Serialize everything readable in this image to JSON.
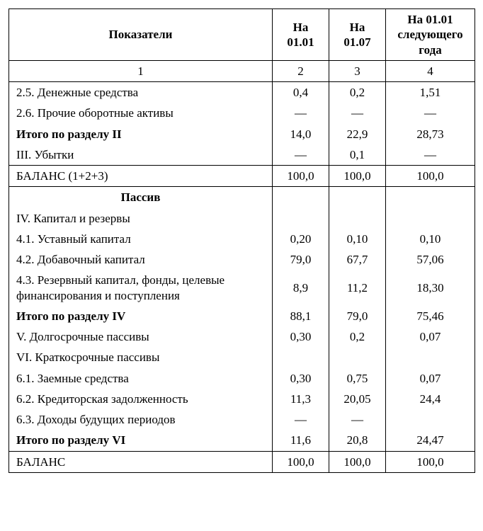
{
  "table": {
    "columns": [
      "col-ind",
      "col-c1",
      "col-c2",
      "col-c3"
    ],
    "header": {
      "indicators": "Показатели",
      "c1": "На 01.01",
      "c2": "На 01.07",
      "c3": "На 01.01 следующего года"
    },
    "numrow": {
      "n1": "1",
      "n2": "2",
      "n3": "3",
      "n4": "4"
    },
    "rows": [
      {
        "label": "2.5. Денежные средства",
        "c1": "0,4",
        "c2": "0,2",
        "c3": "1,51",
        "style": "plain",
        "border": "no-bottom"
      },
      {
        "label": "2.6. Прочие оборотные активы",
        "c1": "—",
        "c2": "—",
        "c3": "—",
        "style": "plain",
        "border": "no-top no-bottom"
      },
      {
        "label": "Итого по разделу II",
        "c1": "14,0",
        "c2": "22,9",
        "c3": "28,73",
        "style": "bold",
        "border": "no-top no-bottom"
      },
      {
        "label": "III. Убытки",
        "c1": "—",
        "c2": "0,1",
        "c3": "—",
        "style": "plain",
        "border": "no-top"
      },
      {
        "label": "БАЛАНС (1+2+3)",
        "c1": "100,0",
        "c2": "100,0",
        "c3": "100,0",
        "style": "plain",
        "border": ""
      },
      {
        "label": "Пассив",
        "c1": "",
        "c2": "",
        "c3": "",
        "style": "section",
        "border": "no-bottom"
      },
      {
        "label": "IV. Капитал и резервы",
        "c1": "",
        "c2": "",
        "c3": "",
        "style": "plain",
        "border": "no-top no-bottom"
      },
      {
        "label": "4.1. Уставный капитал",
        "c1": "0,20",
        "c2": "0,10",
        "c3": "0,10",
        "style": "plain",
        "border": "no-top no-bottom"
      },
      {
        "label": "4.2. Добавочный капитал",
        "c1": "79,0",
        "c2": "67,7",
        "c3": "57,06",
        "style": "plain",
        "border": "no-top no-bottom"
      },
      {
        "label": "4.3. Резервный капитал, фонды, целевые финансирования и поступления",
        "c1": "8,9",
        "c2": "11,2",
        "c3": "18,30",
        "style": "plain",
        "border": "no-top no-bottom"
      },
      {
        "label": "Итого по разделу IV",
        "c1": "88,1",
        "c2": "79,0",
        "c3": "75,46",
        "style": "bold",
        "border": "no-top no-bottom"
      },
      {
        "label": "V. Долгосрочные пассивы",
        "c1": "0,30",
        "c2": "0,2",
        "c3": "0,07",
        "style": "plain",
        "border": "no-top no-bottom"
      },
      {
        "label": "VI. Краткосрочные пассивы",
        "c1": "",
        "c2": "",
        "c3": "",
        "style": "plain",
        "border": "no-top no-bottom"
      },
      {
        "label": "6.1. Заемные средства",
        "c1": "0,30",
        "c2": "0,75",
        "c3": "0,07",
        "style": "plain",
        "border": "no-top no-bottom"
      },
      {
        "label": "6.2. Кредиторская задолженность",
        "c1": "11,3",
        "c2": "20,05",
        "c3": "24,4",
        "style": "plain",
        "border": "no-top no-bottom"
      },
      {
        "label": "6.3. Доходы будущих периодов",
        "c1": "—",
        "c2": "—",
        "c3": "",
        "style": "plain",
        "border": "no-top no-bottom"
      },
      {
        "label": "Итого по разделу VI",
        "c1": "11,6",
        "c2": "20,8",
        "c3": "24,47",
        "style": "bold",
        "border": "no-top"
      },
      {
        "label": "БАЛАНС",
        "c1": "100,0",
        "c2": "100,0",
        "c3": "100,0",
        "style": "plain",
        "border": ""
      }
    ],
    "colors": {
      "border": "#000000",
      "text": "#000000",
      "background": "#ffffff"
    },
    "fontsizes": {
      "header": 17,
      "body": 17
    }
  }
}
